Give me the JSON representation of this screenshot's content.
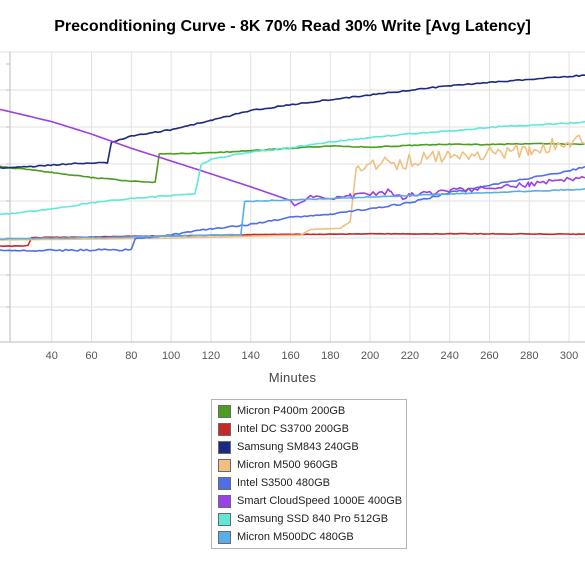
{
  "chart_data": {
    "type": "line",
    "title": "Preconditioning Curve - 8K 70% Read 30% Write [Avg Latency]",
    "xlabel": "Minutes",
    "ylabel": "",
    "xlim": [
      14,
      308
    ],
    "ylim": [
      0,
      1
    ],
    "x_ticks": [
      40,
      60,
      80,
      100,
      120,
      140,
      160,
      180,
      200,
      220,
      240,
      260,
      280,
      300
    ],
    "y_ticks_labeled": false,
    "grid": true,
    "legend_position": "bottom-center",
    "series": [
      {
        "name": "Micron P400m 200GB",
        "color": "#4a9d1f",
        "points": [
          [
            14,
            0.605
          ],
          [
            40,
            0.585
          ],
          [
            60,
            0.567
          ],
          [
            80,
            0.555
          ],
          [
            92,
            0.55
          ],
          [
            94,
            0.648
          ],
          [
            120,
            0.652
          ],
          [
            140,
            0.66
          ],
          [
            160,
            0.668
          ],
          [
            180,
            0.676
          ],
          [
            200,
            0.672
          ],
          [
            220,
            0.678
          ],
          [
            240,
            0.682
          ],
          [
            260,
            0.681
          ],
          [
            280,
            0.684
          ],
          [
            300,
            0.682
          ],
          [
            308,
            0.683
          ]
        ]
      },
      {
        "name": "Intel DC S3700 200GB",
        "color": "#c62828",
        "points": [
          [
            14,
            0.33
          ],
          [
            28,
            0.332
          ],
          [
            30,
            0.36
          ],
          [
            60,
            0.362
          ],
          [
            80,
            0.365
          ],
          [
            100,
            0.366
          ],
          [
            140,
            0.37
          ],
          [
            180,
            0.372
          ],
          [
            220,
            0.373
          ],
          [
            260,
            0.373
          ],
          [
            300,
            0.372
          ],
          [
            308,
            0.372
          ]
        ]
      },
      {
        "name": "Samsung SM843 240GB",
        "color": "#1a2a80",
        "points": [
          [
            14,
            0.6
          ],
          [
            30,
            0.605
          ],
          [
            50,
            0.615
          ],
          [
            68,
            0.618
          ],
          [
            70,
            0.688
          ],
          [
            80,
            0.71
          ],
          [
            100,
            0.732
          ],
          [
            120,
            0.764
          ],
          [
            140,
            0.798
          ],
          [
            160,
            0.818
          ],
          [
            180,
            0.836
          ],
          [
            200,
            0.852
          ],
          [
            220,
            0.868
          ],
          [
            240,
            0.884
          ],
          [
            260,
            0.895
          ],
          [
            280,
            0.905
          ],
          [
            300,
            0.916
          ],
          [
            308,
            0.92
          ]
        ]
      },
      {
        "name": "Micron M500 960GB",
        "color": "#f0c080",
        "points": [
          [
            14,
            0.352
          ],
          [
            60,
            0.355
          ],
          [
            100,
            0.358
          ],
          [
            140,
            0.365
          ],
          [
            165,
            0.368
          ],
          [
            170,
            0.388
          ],
          [
            185,
            0.392
          ],
          [
            190,
            0.415
          ],
          [
            193,
            0.6
          ],
          [
            200,
            0.615
          ],
          [
            220,
            0.622
          ],
          [
            240,
            0.648
          ],
          [
            260,
            0.65
          ],
          [
            280,
            0.662
          ],
          [
            300,
            0.695
          ],
          [
            308,
            0.7
          ]
        ]
      },
      {
        "name": "Intel S3500 480GB",
        "color": "#4f6fe8",
        "points": [
          [
            14,
            0.315
          ],
          [
            80,
            0.318
          ],
          [
            82,
            0.355
          ],
          [
            100,
            0.37
          ],
          [
            120,
            0.39
          ],
          [
            140,
            0.405
          ],
          [
            160,
            0.43
          ],
          [
            180,
            0.44
          ],
          [
            200,
            0.46
          ],
          [
            220,
            0.48
          ],
          [
            240,
            0.515
          ],
          [
            260,
            0.54
          ],
          [
            280,
            0.565
          ],
          [
            300,
            0.59
          ],
          [
            308,
            0.605
          ]
        ]
      },
      {
        "name": "Smart CloudSpeed 1000E 400GB",
        "color": "#9b3fe6",
        "points": [
          [
            14,
            0.802
          ],
          [
            40,
            0.76
          ],
          [
            60,
            0.717
          ],
          [
            80,
            0.668
          ],
          [
            100,
            0.624
          ],
          [
            120,
            0.58
          ],
          [
            140,
            0.535
          ],
          [
            160,
            0.488
          ],
          [
            162,
            0.47
          ],
          [
            170,
            0.5
          ],
          [
            190,
            0.502
          ],
          [
            210,
            0.52
          ],
          [
            215,
            0.498
          ],
          [
            220,
            0.51
          ],
          [
            240,
            0.522
          ],
          [
            260,
            0.532
          ],
          [
            280,
            0.545
          ],
          [
            300,
            0.56
          ],
          [
            308,
            0.565
          ]
        ]
      },
      {
        "name": "Samsung SSD 840 Pro 512GB",
        "color": "#5fe8d8",
        "points": [
          [
            14,
            0.44
          ],
          [
            40,
            0.458
          ],
          [
            60,
            0.48
          ],
          [
            80,
            0.495
          ],
          [
            100,
            0.505
          ],
          [
            112,
            0.51
          ],
          [
            115,
            0.61
          ],
          [
            120,
            0.63
          ],
          [
            140,
            0.655
          ],
          [
            160,
            0.67
          ],
          [
            180,
            0.69
          ],
          [
            200,
            0.705
          ],
          [
            220,
            0.718
          ],
          [
            240,
            0.728
          ],
          [
            260,
            0.74
          ],
          [
            280,
            0.748
          ],
          [
            300,
            0.755
          ],
          [
            308,
            0.758
          ]
        ]
      },
      {
        "name": "Micron M500DC 480GB",
        "color": "#5aaee6",
        "points": [
          [
            14,
            0.355
          ],
          [
            60,
            0.36
          ],
          [
            100,
            0.365
          ],
          [
            135,
            0.37
          ],
          [
            137,
            0.485
          ],
          [
            160,
            0.49
          ],
          [
            180,
            0.495
          ],
          [
            200,
            0.5
          ],
          [
            220,
            0.505
          ],
          [
            240,
            0.51
          ],
          [
            260,
            0.515
          ],
          [
            280,
            0.52
          ],
          [
            300,
            0.525
          ],
          [
            308,
            0.527
          ]
        ]
      }
    ]
  }
}
